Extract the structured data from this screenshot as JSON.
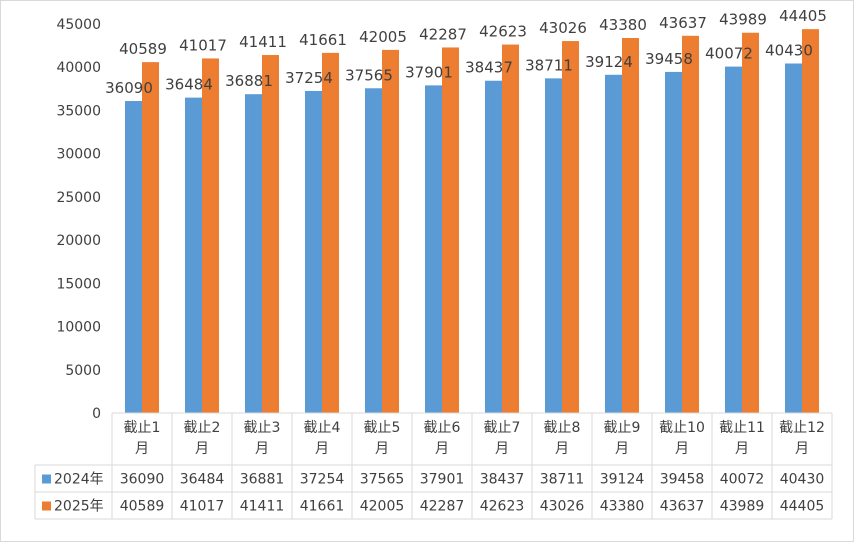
{
  "chart_data": {
    "type": "bar",
    "categories": [
      [
        "截止1",
        "月"
      ],
      [
        "截止2",
        "月"
      ],
      [
        "截止3",
        "月"
      ],
      [
        "截止4",
        "月"
      ],
      [
        "截止5",
        "月"
      ],
      [
        "截止6",
        "月"
      ],
      [
        "截止7",
        "月"
      ],
      [
        "截止8",
        "月"
      ],
      [
        "截止9",
        "月"
      ],
      [
        "截止10",
        "月"
      ],
      [
        "截止11",
        "月"
      ],
      [
        "截止12",
        "月"
      ]
    ],
    "series": [
      {
        "name": "2024年",
        "color": "#5b9bd5",
        "values": [
          36090,
          36484,
          36881,
          37254,
          37565,
          37901,
          38437,
          38711,
          39124,
          39458,
          40072,
          40430
        ]
      },
      {
        "name": "2025年",
        "color": "#ed7d31",
        "values": [
          40589,
          41017,
          41411,
          41661,
          42005,
          42287,
          42623,
          43026,
          43380,
          43637,
          43989,
          44405
        ]
      }
    ],
    "ylim": [
      0,
      45000
    ],
    "yticks": [
      0,
      5000,
      10000,
      15000,
      20000,
      25000,
      30000,
      35000,
      40000,
      45000
    ],
    "grid": false,
    "data_labels": true,
    "legend": "data-table"
  }
}
